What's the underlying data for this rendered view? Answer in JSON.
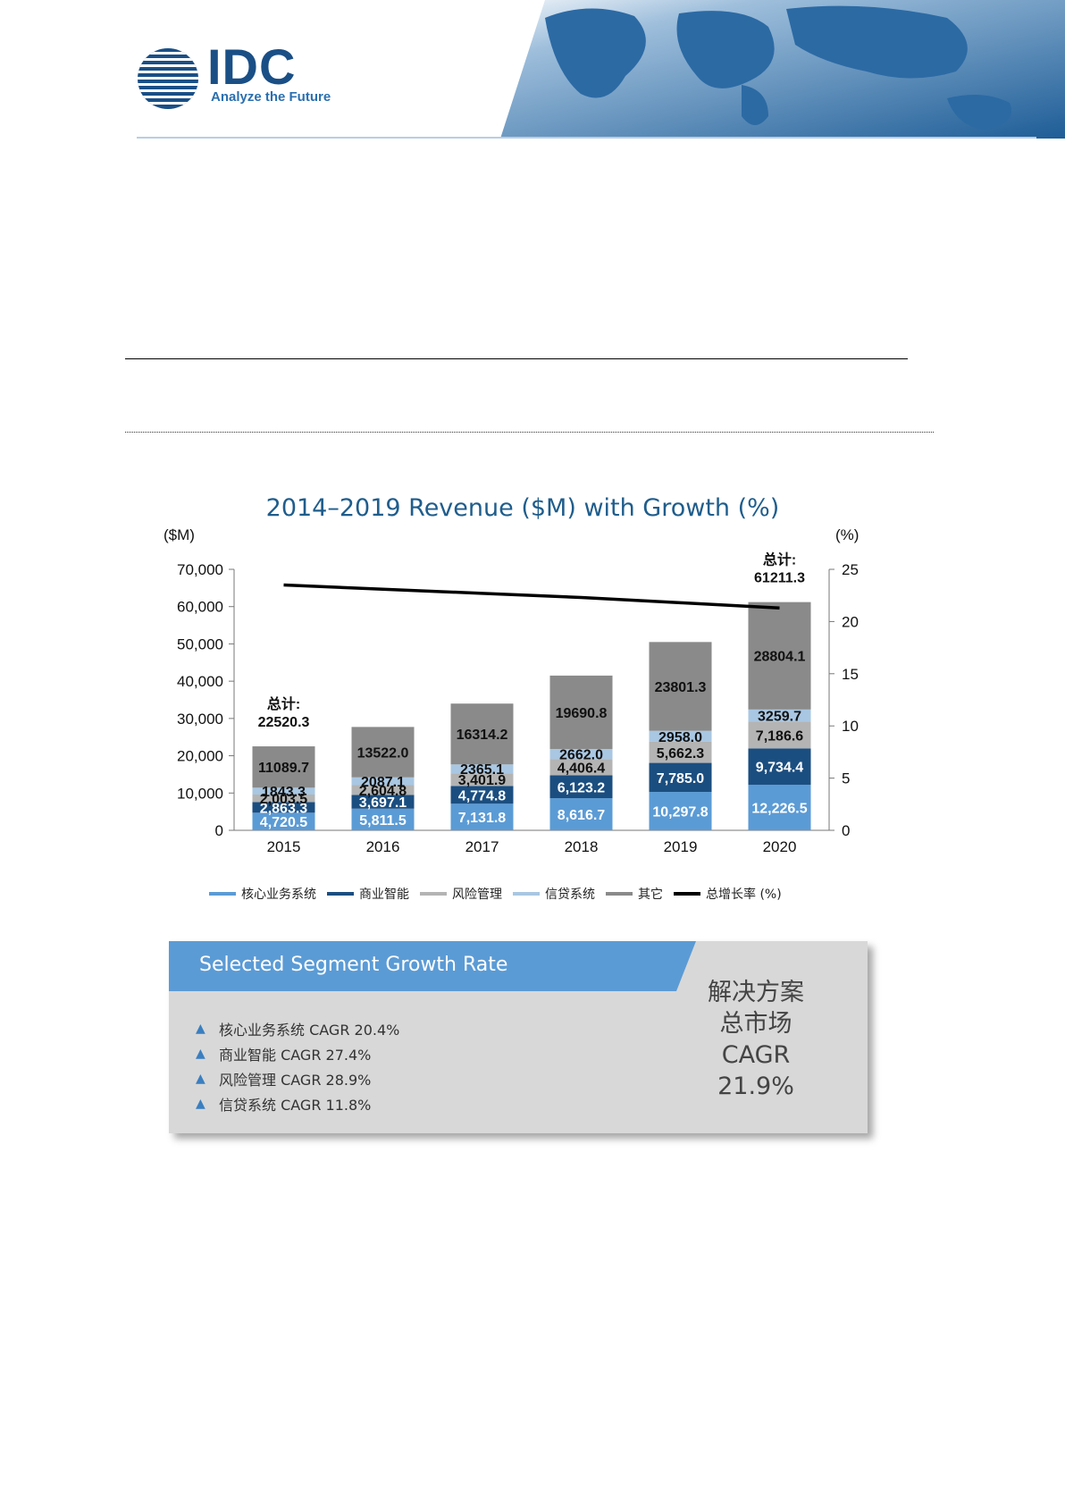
{
  "header": {
    "logo_text": "IDC",
    "tagline": "Analyze the Future"
  },
  "chart_data": {
    "type": "bar",
    "stacked": true,
    "title": "2014–2019 Revenue ($M) with Growth (%)",
    "y_unit_left": "($M)",
    "y_unit_right": "(%)",
    "categories": [
      "2015",
      "2016",
      "2017",
      "2018",
      "2019",
      "2020"
    ],
    "ylim": [
      0,
      70000
    ],
    "yticks": [
      "0",
      "10,000",
      "20,000",
      "30,000",
      "40,000",
      "50,000",
      "60,000",
      "70,000"
    ],
    "ylim_right": [
      0,
      25
    ],
    "yticks_right": [
      "0",
      "5",
      "10",
      "15",
      "20",
      "25"
    ],
    "series": [
      {
        "name": "核心业务系统",
        "color": "#5b9bd5",
        "values": [
          4720.5,
          5811.5,
          7131.8,
          8616.7,
          10297.8,
          12226.5
        ],
        "labels": [
          "4,720.5",
          "5,811.5",
          "7,131.8",
          "8,616.7",
          "10,297.8",
          "12,226.5"
        ]
      },
      {
        "name": "商业智能",
        "color": "#1b4e80",
        "values": [
          2863.3,
          3697.1,
          4774.8,
          6123.2,
          7785.0,
          9734.4
        ],
        "labels": [
          "2,863.3",
          "3,697.1",
          "4,774.8",
          "6,123.2",
          "7,785.0",
          "9,734.4"
        ]
      },
      {
        "name": "风险管理",
        "color": "#b4b4b4",
        "values": [
          2003.5,
          2604.8,
          3401.9,
          4406.4,
          5662.3,
          7186.6
        ],
        "labels": [
          "2,003.5",
          "2,604.8",
          "3,401.9",
          "4,406.4",
          "5,662.3",
          "7,186.6"
        ]
      },
      {
        "name": "信贷系统",
        "color": "#a9c7e2",
        "values": [
          1843.3,
          2087.1,
          2365.1,
          2662.0,
          2958.0,
          3259.7
        ],
        "labels": [
          "1843.3",
          "2087.1",
          "2365.1",
          "2662.0",
          "2958.0",
          "3259.7"
        ]
      },
      {
        "name": "其它",
        "color": "#8a8a8a",
        "values": [
          11089.7,
          13522.0,
          16314.2,
          19690.8,
          23801.3,
          28804.1
        ],
        "labels": [
          "11089.7",
          "13522.0",
          "16314.2",
          "19690.8",
          "23801.3",
          "28804.1"
        ]
      }
    ],
    "growth": {
      "name": "总增长率",
      "unit": "(%)",
      "color": "#000000",
      "values": [
        23.5,
        23.1,
        22.7,
        22.3,
        21.8,
        21.3
      ]
    },
    "totals": [
      {
        "category": "2015",
        "label": "总计:",
        "value": "22520.3"
      },
      {
        "category": "2020",
        "label": "总计:",
        "value": "61211.3"
      }
    ],
    "legend_position": "bottom"
  },
  "segment_box": {
    "title": "Selected Segment Growth Rate",
    "items": [
      "核心业务系统  CAGR 20.4%",
      "商业智能 CAGR 27.4%",
      "风险管理 CAGR 28.9%",
      "信贷系统 CAGR 11.8%"
    ],
    "total_lines": [
      "解决方案",
      "总市场",
      "CAGR",
      "21.9%"
    ],
    "banner_color": "#5b9bd5"
  }
}
